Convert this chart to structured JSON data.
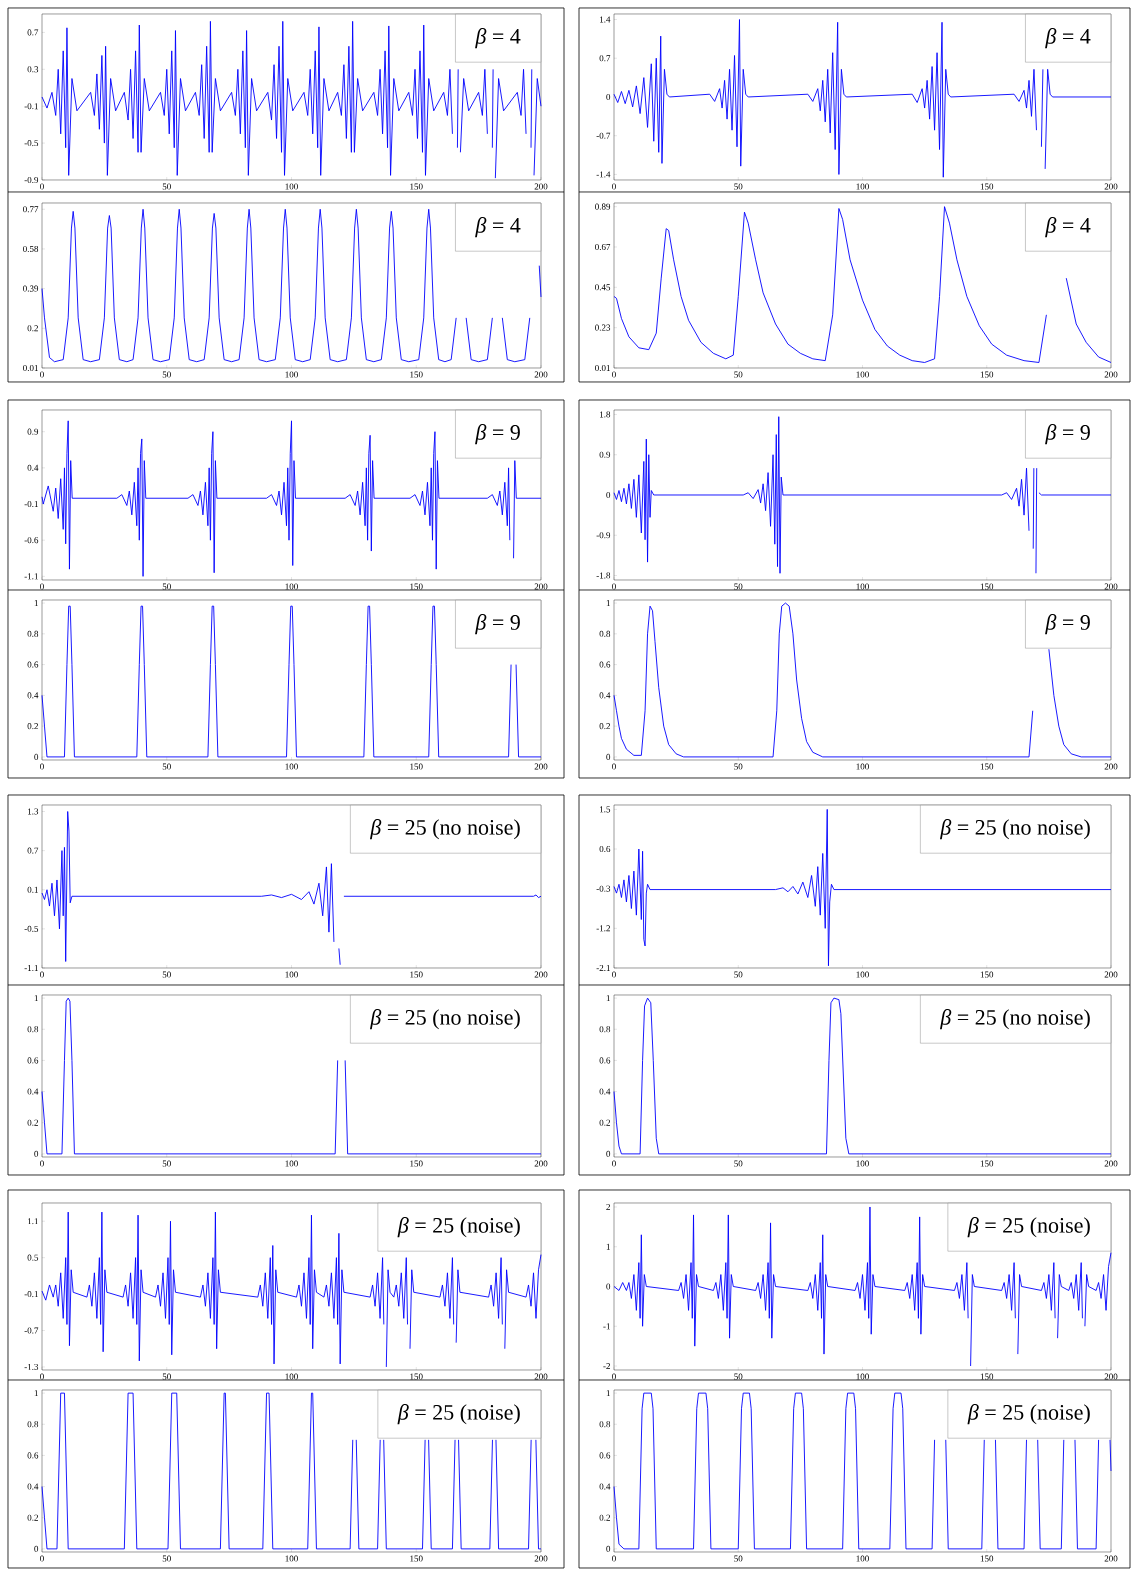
{
  "chart_data": [
    {
      "type": "line",
      "title": "*β* = 4",
      "color": "#0000ff",
      "xlim": [
        0,
        200
      ],
      "xticks": [
        0,
        50,
        100,
        150,
        200
      ],
      "ylim": [
        -0.9,
        0.9
      ],
      "yticks": [
        -0.9,
        -0.5,
        -0.1,
        0.3,
        0.7
      ],
      "x": [
        0,
        2,
        4,
        5.5,
        6.5,
        7.5,
        8.5,
        9.5,
        10,
        10.7,
        12,
        14,
        19.5,
        21,
        22,
        23,
        24,
        25,
        25.5,
        26.2,
        27.5,
        29.5,
        33,
        34.5,
        35.5,
        36.5,
        37.5,
        38.5,
        39,
        39.7,
        41,
        43,
        47.5,
        49,
        50,
        51,
        52,
        53,
        53.5,
        54.2,
        55.5,
        57.5,
        61.5,
        63,
        64,
        65,
        66,
        67,
        67.5,
        68.2,
        69.5,
        71.5,
        76,
        77.5,
        78.5,
        79.5,
        80.5,
        81.5,
        82,
        82.7,
        84,
        86,
        90.5,
        92,
        93,
        94,
        95,
        96,
        96.5,
        97.2,
        98.5,
        100.5,
        105,
        106.5,
        107.5,
        108.5,
        109.5,
        110.5,
        111,
        111.7,
        113,
        115,
        118.5,
        120,
        121,
        122,
        123,
        124,
        124.5,
        125.2,
        126.5,
        128.5,
        133,
        134.5,
        135.5,
        136.5,
        137.5,
        138.5,
        139,
        139.7,
        141,
        143,
        147,
        148.5,
        149.5,
        150.5,
        151.5,
        152.5,
        153,
        153.7,
        155,
        157,
        161,
        162.5,
        163.5,
        164.5,
        165.5,
        166.5,
        166.8,
        167,
        167.7,
        169,
        171,
        175,
        176.5,
        177.5,
        178.5,
        179.5,
        180.5,
        180.8,
        181,
        181.7,
        183,
        185,
        190.5,
        192,
        193,
        194,
        195,
        196,
        196.3,
        196.5,
        197.2,
        198.5,
        200
      ],
      "values": [
        0,
        -0.12,
        0.05,
        -0.2,
        0.3,
        -0.4,
        0.5,
        -0.55,
        0.75,
        -0.85,
        0.2,
        -0.15,
        0.05,
        -0.2,
        0.25,
        -0.35,
        0.45,
        -0.5,
        0.55,
        -0.85,
        0.2,
        -0.15,
        0.05,
        -0.25,
        0.3,
        -0.45,
        0.5,
        -0.6,
        0.78,
        -0.6,
        0.2,
        -0.15,
        0.05,
        -0.2,
        0.3,
        -0.4,
        0.5,
        -0.55,
        0.72,
        -0.85,
        0.2,
        -0.15,
        0.05,
        -0.2,
        0.35,
        -0.45,
        0.55,
        -0.6,
        0.82,
        -0.6,
        0.2,
        -0.15,
        0.05,
        -0.2,
        0.3,
        -0.4,
        0.5,
        -0.55,
        0.72,
        -0.85,
        0.2,
        -0.15,
        0.05,
        -0.25,
        0.35,
        -0.45,
        0.55,
        -0.6,
        0.82,
        -0.85,
        0.2,
        -0.15,
        0.05,
        -0.2,
        0.3,
        -0.4,
        0.5,
        -0.55,
        0.76,
        -0.85,
        0.2,
        -0.15,
        0.05,
        -0.2,
        0.35,
        -0.45,
        0.55,
        -0.6,
        0.82,
        -0.6,
        0.2,
        -0.15,
        0.05,
        -0.2,
        0.3,
        -0.4,
        0.5,
        -0.55,
        0.77,
        -0.85,
        0.2,
        -0.15,
        0.05,
        -0.2,
        0.3,
        -0.45,
        0.5,
        -0.6,
        0.78,
        -0.85,
        0.2,
        -0.15,
        0.05,
        -0.2,
        0.3,
        -0.4,
        null,
        -0.55,
        0.3,
        null,
        -0.6,
        0.2,
        -0.15,
        0.05,
        -0.2,
        0.3,
        -0.4,
        null,
        -0.55,
        0.3,
        null,
        -0.88,
        0.2,
        -0.15,
        0.05,
        -0.2,
        0.3,
        -0.4,
        null,
        -0.55,
        0.3,
        null,
        -0.85,
        0.2,
        -0.1
      ]
    },
    {
      "type": "line",
      "title": "*β* = 4",
      "color": "#0000ff",
      "xlim": [
        0,
        200
      ],
      "xticks": [
        0,
        50,
        100,
        150,
        200
      ],
      "ylim": [
        -1.5,
        1.5
      ],
      "yticks": [
        -1.4,
        -0.7,
        0,
        0.7,
        1.4
      ],
      "x": [
        0,
        1.5,
        3,
        4.5,
        6,
        7.5,
        9,
        10.5,
        12,
        13.5,
        15,
        16,
        17,
        18,
        18.8,
        19.3,
        20.3,
        21.3,
        22.3,
        38.5,
        40.5,
        42.5,
        43.5,
        44.5,
        45.5,
        46.5,
        47.5,
        48.5,
        49.5,
        50.5,
        51,
        52,
        53,
        54,
        78,
        80,
        82,
        83,
        84,
        85,
        86,
        87,
        88,
        89,
        90,
        90.5,
        91.5,
        92.5,
        93.5,
        120,
        122,
        124,
        125,
        126,
        127,
        128,
        129,
        130,
        131,
        132,
        132.5,
        133.5,
        134.5,
        135.5,
        161,
        163,
        165,
        166,
        167,
        168,
        169,
        170,
        171,
        172,
        172.6,
        173,
        173.5,
        174.5,
        175.5,
        176.5,
        200
      ],
      "values": [
        0.05,
        -0.1,
        0.1,
        -0.12,
        0.12,
        -0.18,
        0.2,
        -0.3,
        0.35,
        -0.55,
        0.6,
        -0.8,
        0.7,
        -1.0,
        1.1,
        -1.2,
        0.5,
        0.05,
        0,
        0.05,
        -0.08,
        0.15,
        -0.2,
        0.3,
        -0.4,
        0.5,
        -0.6,
        0.75,
        -0.9,
        1.4,
        -1.25,
        0.5,
        0.05,
        0,
        0.05,
        -0.08,
        0.15,
        -0.25,
        0.3,
        -0.45,
        0.5,
        -0.65,
        0.8,
        -0.95,
        1.35,
        -1.4,
        0.5,
        0.05,
        0,
        0.05,
        -0.1,
        0.15,
        -0.2,
        0.3,
        -0.4,
        0.55,
        -0.6,
        0.8,
        -0.95,
        1.35,
        -1.45,
        0.5,
        0.05,
        0,
        0.05,
        -0.08,
        0.12,
        -0.2,
        0.3,
        -0.35,
        0.5,
        -0.6,
        null,
        -0.9,
        0.5,
        null,
        -1.3,
        0.5,
        0.05,
        0,
        0
      ]
    },
    {
      "type": "line",
      "title": "*β* = 4",
      "color": "#0000ff",
      "xlim": [
        0,
        200
      ],
      "xticks": [
        0,
        50,
        100,
        150,
        200
      ],
      "ylim": [
        0.01,
        0.8
      ],
      "yticks": [
        0.01,
        0.2,
        0.39,
        0.58,
        0.77
      ],
      "x": [
        0,
        1,
        3,
        5,
        8.5,
        10.5,
        11.8,
        12.5,
        13.2,
        14.5,
        16.5,
        19.5,
        23,
        25,
        26.3,
        27,
        27.7,
        29,
        31,
        34,
        36.5,
        38.5,
        39.8,
        40.5,
        41.2,
        42.5,
        44.5,
        47.5,
        51,
        53,
        54.3,
        55,
        55.7,
        57,
        59,
        62,
        65,
        67,
        68.3,
        69,
        69.7,
        71,
        73,
        76,
        79,
        81,
        82.3,
        83,
        83.7,
        85,
        87,
        90,
        93.5,
        95.5,
        96.8,
        97.5,
        98.2,
        99.5,
        101.5,
        104.5,
        107.5,
        109.5,
        110.8,
        111.5,
        112.2,
        113.5,
        115.5,
        118.5,
        122,
        124,
        125.3,
        126,
        126.7,
        128,
        130,
        133,
        136,
        138,
        139.3,
        140,
        140.7,
        142,
        144,
        147,
        151,
        153,
        154.3,
        155,
        155.7,
        157,
        159,
        161.5,
        164,
        166,
        167.3,
        168,
        168.7,
        170,
        172,
        175,
        178.5,
        180.5,
        181.8,
        182.5,
        183.2,
        184.5,
        186.5,
        189.5,
        193.5,
        195.5,
        196.8,
        197.5,
        198.2,
        199.3,
        200
      ],
      "values": [
        0.39,
        0.25,
        0.06,
        0.04,
        0.05,
        0.25,
        0.68,
        0.76,
        0.68,
        0.25,
        0.05,
        0.04,
        0.05,
        0.25,
        0.68,
        0.74,
        0.68,
        0.25,
        0.05,
        0.04,
        0.05,
        0.25,
        0.68,
        0.77,
        0.68,
        0.25,
        0.05,
        0.04,
        0.05,
        0.25,
        0.68,
        0.77,
        0.68,
        0.25,
        0.05,
        0.04,
        0.05,
        0.25,
        0.68,
        0.75,
        0.68,
        0.25,
        0.05,
        0.04,
        0.05,
        0.25,
        0.68,
        0.77,
        0.68,
        0.25,
        0.05,
        0.04,
        0.05,
        0.25,
        0.68,
        0.77,
        0.68,
        0.25,
        0.05,
        0.04,
        0.05,
        0.25,
        0.68,
        0.77,
        0.68,
        0.25,
        0.05,
        0.04,
        0.05,
        0.25,
        0.68,
        0.77,
        0.68,
        0.25,
        0.05,
        0.04,
        0.05,
        0.25,
        0.68,
        0.76,
        0.68,
        0.25,
        0.05,
        0.04,
        0.05,
        0.25,
        0.68,
        0.77,
        0.68,
        0.25,
        0.05,
        0.04,
        0.05,
        0.25,
        null,
        null,
        null,
        0.25,
        0.05,
        0.04,
        0.05,
        0.25,
        null,
        null,
        null,
        0.25,
        0.05,
        0.04,
        0.05,
        0.25,
        null,
        null,
        null,
        0.5,
        0.35
      ]
    },
    {
      "type": "line",
      "title": "*β* = 4",
      "color": "#0000ff",
      "xlim": [
        0,
        200
      ],
      "xticks": [
        0,
        50,
        100,
        150,
        200
      ],
      "ylim": [
        0.01,
        0.91
      ],
      "yticks": [
        0.01,
        0.23,
        0.45,
        0.67,
        0.89
      ],
      "x": [
        0,
        1,
        3,
        6,
        10,
        14,
        17,
        19,
        21,
        22,
        24,
        27,
        30,
        35,
        40,
        45,
        48,
        50,
        52.5,
        54,
        57,
        60,
        65,
        70,
        75,
        80,
        85,
        88,
        90.5,
        92,
        95,
        100,
        105,
        110,
        115,
        120,
        125,
        129,
        131,
        133,
        135,
        138,
        142,
        147,
        152,
        158,
        165,
        171,
        174,
        177,
        179,
        182,
        186,
        190,
        195,
        200
      ],
      "values": [
        0.4,
        0.39,
        0.28,
        0.18,
        0.12,
        0.11,
        0.2,
        0.5,
        0.77,
        0.76,
        0.6,
        0.4,
        0.27,
        0.15,
        0.09,
        0.06,
        0.08,
        0.4,
        0.86,
        0.8,
        0.6,
        0.42,
        0.25,
        0.14,
        0.09,
        0.06,
        0.05,
        0.3,
        0.88,
        0.82,
        0.6,
        0.38,
        0.22,
        0.13,
        0.08,
        0.05,
        0.04,
        0.06,
        0.4,
        0.89,
        0.8,
        0.6,
        0.4,
        0.24,
        0.14,
        0.08,
        0.05,
        0.04,
        0.3,
        null,
        null,
        0.5,
        0.25,
        0.15,
        0.07,
        0.04
      ]
    },
    {
      "type": "line",
      "title": "*β* = 9",
      "color": "#0000ff",
      "xlim": [
        0,
        200
      ],
      "xticks": [
        0,
        50,
        100,
        150,
        200
      ],
      "ylim": [
        -1.15,
        1.2
      ],
      "yticks": [
        -1.1,
        -0.6,
        -0.1,
        0.4,
        0.9
      ],
      "x": [
        0,
        0.5,
        2.5,
        4.5,
        5.5,
        6.5,
        7.5,
        8.5,
        9,
        9.5,
        10,
        10.5,
        11,
        11.5,
        12.1,
        30,
        32,
        34,
        35,
        36,
        37,
        38,
        38.5,
        39,
        39.5,
        40,
        40.5,
        41,
        41.6,
        58.5,
        60.5,
        62.5,
        63.5,
        64.5,
        65.5,
        66.5,
        67,
        67.5,
        68,
        68.5,
        69,
        69.5,
        70.1,
        90,
        92,
        94,
        95,
        96,
        97,
        98,
        98.5,
        99,
        99.5,
        100,
        100.5,
        101,
        101.6,
        121.5,
        123.5,
        125.5,
        126.5,
        127.5,
        128.5,
        129.5,
        130,
        130.5,
        131,
        131.5,
        132,
        132.5,
        133.1,
        147.5,
        149.5,
        151.5,
        152.5,
        153.5,
        154.5,
        155.5,
        156,
        156.5,
        157,
        157.5,
        158,
        158.5,
        159.1,
        178.5,
        180.5,
        182.5,
        183.5,
        184.5,
        185.5,
        186.5,
        187,
        187.5,
        188,
        188.5,
        189,
        189.5,
        190.1,
        200
      ],
      "values": [
        0,
        -0.1,
        0.15,
        -0.2,
        0.12,
        -0.3,
        0.25,
        -0.45,
        0.4,
        -0.65,
        0.6,
        1.05,
        -1.0,
        0.5,
        -0.02,
        -0.02,
        0.03,
        -0.12,
        0.08,
        -0.25,
        0.2,
        -0.4,
        0.4,
        -0.6,
        0.6,
        0.8,
        -1.1,
        0.5,
        -0.02,
        -0.02,
        0.03,
        -0.12,
        0.08,
        -0.25,
        0.2,
        -0.4,
        0.4,
        -0.6,
        0.6,
        0.9,
        -1.05,
        0.5,
        -0.02,
        -0.02,
        0.03,
        -0.12,
        0.08,
        -0.25,
        0.2,
        -0.4,
        0.4,
        -0.6,
        0.6,
        1.05,
        -0.95,
        0.5,
        -0.02,
        -0.02,
        0.03,
        -0.12,
        0.08,
        -0.25,
        0.2,
        -0.4,
        0.4,
        -0.6,
        0.6,
        0.85,
        -0.75,
        0.5,
        -0.02,
        -0.02,
        0.03,
        -0.12,
        0.08,
        -0.25,
        0.2,
        -0.4,
        0.4,
        -0.6,
        0.6,
        0.9,
        -1.0,
        0.5,
        -0.02,
        -0.02,
        0.03,
        -0.12,
        0.08,
        -0.25,
        0.2,
        -0.4,
        0.4,
        -0.6,
        null,
        null,
        -0.85,
        0.5,
        -0.02,
        -0.02
      ]
    },
    {
      "type": "line",
      "title": "*β* = 9",
      "color": "#0000ff",
      "xlim": [
        0,
        200
      ],
      "xticks": [
        0,
        50,
        100,
        150,
        200
      ],
      "ylim": [
        -1.9,
        1.9
      ],
      "yticks": [
        -1.8,
        -0.9,
        0,
        0.9,
        1.8
      ],
      "x": [
        0,
        1,
        2,
        3,
        4,
        5,
        6,
        7,
        8,
        9,
        10,
        11,
        12,
        12.5,
        13,
        13.5,
        14,
        14.5,
        15,
        16,
        52,
        54,
        56,
        58,
        59,
        60,
        61,
        62,
        63,
        64,
        64.7,
        65.3,
        65.8,
        66.3,
        66.8,
        67.3,
        68,
        156,
        158,
        160,
        162,
        163,
        164,
        165,
        166,
        167,
        168,
        168.7,
        168.95,
        169.3,
        169.8,
        170.1,
        170.3,
        171,
        172,
        200
      ],
      "values": [
        0.05,
        -0.1,
        0.1,
        -0.15,
        0.15,
        -0.2,
        0.25,
        -0.3,
        0.35,
        -0.5,
        0.45,
        -0.85,
        0.75,
        -1.0,
        1.25,
        -1.5,
        0.9,
        -0.5,
        0.1,
        0,
        0,
        0.05,
        -0.08,
        0.12,
        -0.18,
        0.25,
        -0.35,
        0.5,
        -0.7,
        0.9,
        -1.1,
        1.35,
        -1.6,
        1.75,
        -1.75,
        0.4,
        0,
        0,
        0.05,
        -0.1,
        0.15,
        -0.25,
        0.35,
        -0.45,
        0.6,
        -0.8,
        null,
        -1.2,
        0.6,
        null,
        -1.75,
        0.6,
        null,
        0.05,
        0,
        0
      ]
    },
    {
      "type": "line",
      "title": "*β* = 9",
      "color": "#0000ff",
      "xlim": [
        0,
        200
      ],
      "xticks": [
        0,
        50,
        100,
        150,
        200
      ],
      "ylim": [
        -0.02,
        1.02
      ],
      "yticks": [
        0,
        0.2,
        0.4,
        0.6,
        0.8,
        1
      ],
      "x": [
        0,
        1,
        2,
        9,
        10,
        10.7,
        11.3,
        12,
        13,
        38,
        39,
        39.7,
        40.3,
        41,
        42,
        66.5,
        67.5,
        68.2,
        68.8,
        69.5,
        70.5,
        98,
        99,
        99.7,
        100.3,
        101,
        102,
        129,
        130,
        130.7,
        131.3,
        132,
        133,
        155,
        156,
        156.7,
        157.3,
        158,
        159,
        187,
        188,
        188.7,
        189.3,
        190,
        191,
        200
      ],
      "values": [
        0.4,
        0.2,
        0,
        0,
        0.6,
        0.98,
        0.98,
        0.6,
        0,
        0,
        0.6,
        0.98,
        0.98,
        0.6,
        0,
        0,
        0.6,
        0.98,
        0.98,
        0.6,
        0,
        0,
        0.6,
        0.98,
        0.98,
        0.6,
        0,
        0,
        0.6,
        0.98,
        0.98,
        0.6,
        0,
        0,
        0.6,
        0.98,
        0.98,
        0.6,
        0,
        0,
        0.6,
        null,
        null,
        0.6,
        0,
        0
      ]
    },
    {
      "type": "line",
      "title": "*β* = 9",
      "color": "#0000ff",
      "xlim": [
        0,
        200
      ],
      "xticks": [
        0,
        50,
        100,
        150,
        200
      ],
      "ylim": [
        -0.02,
        1.02
      ],
      "yticks": [
        0,
        0.2,
        0.4,
        0.6,
        0.8,
        1
      ],
      "x": [
        0,
        1,
        2,
        3,
        5,
        8,
        11,
        12.5,
        13.5,
        14.5,
        15.5,
        16.5,
        18,
        20,
        22,
        25,
        28,
        64,
        65.5,
        66.5,
        67.5,
        69,
        70.5,
        72,
        73.5,
        75.5,
        77.5,
        80,
        84,
        167,
        168.5,
        169.5,
        170.5,
        172,
        173.5,
        175,
        177,
        179,
        181,
        184,
        188,
        200
      ],
      "values": [
        0.4,
        0.3,
        0.2,
        0.12,
        0.05,
        0.01,
        0.01,
        0.3,
        0.8,
        0.98,
        0.95,
        0.75,
        0.45,
        0.2,
        0.08,
        0.02,
        0,
        0,
        0.3,
        0.8,
        0.98,
        1.0,
        0.98,
        0.8,
        0.5,
        0.25,
        0.1,
        0.03,
        0,
        0,
        0.3,
        null,
        null,
        null,
        null,
        0.7,
        0.4,
        0.2,
        0.08,
        0.02,
        0,
        0
      ]
    },
    {
      "type": "line",
      "title": "*β* = 25 (no noise)",
      "color": "#0000ff",
      "xlim": [
        0,
        200
      ],
      "xticks": [
        0,
        50,
        100,
        150,
        200
      ],
      "ylim": [
        -1.1,
        1.4
      ],
      "yticks": [
        -1.1,
        -0.5,
        0.1,
        0.7,
        1.3
      ],
      "x": [
        0,
        1,
        2,
        3,
        4,
        5,
        6,
        7,
        8,
        8.5,
        9,
        9.5,
        10.3,
        10.8,
        11.3,
        12,
        88,
        92,
        96,
        100,
        104,
        107,
        109,
        111,
        112.5,
        114,
        115,
        116,
        117,
        118,
        119,
        119.5,
        120,
        120.5,
        121,
        197,
        198,
        199,
        200
      ],
      "values": [
        0.05,
        -0.05,
        0.1,
        -0.15,
        0.2,
        -0.3,
        0.25,
        -0.5,
        0.7,
        -0.3,
        0.75,
        -1.0,
        1.3,
        1.0,
        -0.1,
        0,
        0,
        0.02,
        -0.02,
        0.03,
        -0.05,
        0.07,
        -0.12,
        0.2,
        -0.3,
        0.45,
        -0.55,
        0.5,
        -0.7,
        null,
        -0.8,
        -1.05,
        null,
        null,
        0,
        0,
        0.02,
        -0.02,
        0
      ]
    },
    {
      "type": "line",
      "title": "*β* = 25 (no noise)",
      "color": "#0000ff",
      "xlim": [
        0,
        200
      ],
      "xticks": [
        0,
        50,
        100,
        150,
        200
      ],
      "ylim": [
        -2.1,
        1.6
      ],
      "yticks": [
        -2.1,
        -1.2,
        -0.3,
        0.6,
        1.5
      ],
      "x": [
        0,
        1,
        2,
        3,
        4,
        5,
        6,
        7,
        8,
        9,
        10,
        11,
        11.5,
        12,
        12.5,
        13,
        13.5,
        14.5,
        65,
        68,
        70,
        72,
        74,
        76,
        78,
        79.5,
        81,
        82,
        83,
        84,
        85,
        85.8,
        86.3,
        86.8,
        87.5,
        88.5,
        200
      ],
      "values": [
        -0.25,
        -0.4,
        -0.2,
        -0.5,
        -0.1,
        -0.6,
        0,
        -0.75,
        0.1,
        -0.9,
        0.6,
        -1.0,
        0.55,
        -1.45,
        -1.6,
        -0.4,
        -0.2,
        -0.32,
        -0.32,
        -0.28,
        -0.37,
        -0.25,
        -0.42,
        -0.15,
        -0.5,
        0,
        -0.7,
        0.2,
        -0.9,
        0.5,
        -1.2,
        1.5,
        -2.05,
        -0.6,
        -0.2,
        -0.32,
        -0.32
      ]
    },
    {
      "type": "line",
      "title": "*β* = 25 (no noise)",
      "color": "#0000ff",
      "xlim": [
        0,
        200
      ],
      "xticks": [
        0,
        50,
        100,
        150,
        200
      ],
      "ylim": [
        -0.02,
        1.02
      ],
      "yticks": [
        0,
        0.2,
        0.4,
        0.6,
        0.8,
        1
      ],
      "x": [
        0,
        1,
        2,
        8,
        9,
        9.7,
        10.5,
        11.2,
        12,
        13,
        117.5,
        118.5,
        119.3,
        120.3,
        121.5,
        122.5,
        200
      ],
      "values": [
        0.4,
        0.2,
        0,
        0,
        0.6,
        0.98,
        1.0,
        0.98,
        0.6,
        0,
        0,
        0.6,
        null,
        null,
        0.6,
        0,
        0
      ]
    },
    {
      "type": "line",
      "title": "*β* = 25 (no noise)",
      "color": "#0000ff",
      "xlim": [
        0,
        200
      ],
      "xticks": [
        0,
        50,
        100,
        150,
        200
      ],
      "ylim": [
        -0.02,
        1.02
      ],
      "yticks": [
        0,
        0.2,
        0.4,
        0.6,
        0.8,
        1
      ],
      "x": [
        0,
        1,
        2,
        3,
        10.5,
        11.5,
        12.3,
        13.5,
        14.8,
        15.8,
        17,
        18,
        85.5,
        86.5,
        87.3,
        88.5,
        90.5,
        91.3,
        92.3,
        93.3,
        94.5,
        200
      ],
      "values": [
        0.4,
        0.2,
        0.05,
        0,
        0,
        0.6,
        0.95,
        1.0,
        0.97,
        0.6,
        0.1,
        0,
        0,
        0.6,
        0.97,
        1.0,
        0.99,
        0.9,
        0.5,
        0.1,
        0,
        0
      ]
    },
    {
      "type": "line",
      "title": "*β* = 25 (noise)",
      "color": "#0000ff",
      "xlim": [
        0,
        200
      ],
      "xticks": [
        0,
        50,
        100,
        150,
        200
      ],
      "ylim": [
        -1.35,
        1.4
      ],
      "yticks": [
        -1.3,
        -0.7,
        -0.1,
        0.5,
        1.1
      ],
      "x": [
        0,
        1.5,
        3,
        4.5,
        5.5,
        6.5,
        7.5,
        8.5,
        9.5,
        10,
        10.5,
        11,
        11.7,
        12.5,
        18,
        19,
        20,
        21,
        22,
        23,
        23.5,
        24,
        24.5,
        25.2,
        26,
        32.5,
        33.5,
        34.5,
        35.5,
        36.5,
        37.5,
        38,
        38.5,
        39,
        39.7,
        40.5,
        45.5,
        46.5,
        47.5,
        48.5,
        49.5,
        50.5,
        51,
        51.5,
        52,
        52.7,
        53.5,
        63.5,
        64.5,
        65.5,
        66.5,
        67.5,
        68.5,
        69,
        69.5,
        70,
        70.7,
        71.5,
        86.5,
        87.5,
        88.5,
        89.5,
        90.5,
        91.5,
        92,
        92.5,
        93,
        93.7,
        94.5,
        102,
        103,
        104,
        105,
        106,
        107,
        107.5,
        108,
        108.5,
        109.2,
        110,
        113,
        114,
        115,
        116,
        117,
        118,
        118.5,
        119,
        119.5,
        120.2,
        121,
        131.5,
        132.5,
        133.5,
        134.5,
        135.5,
        136.5,
        137,
        137.5,
        138,
        138.7,
        139.5,
        141,
        142,
        143,
        144,
        145,
        146,
        146.5,
        147,
        147.5,
        148.2,
        149,
        159.5,
        160.5,
        161.5,
        162.5,
        163.5,
        164.5,
        165,
        165.5,
        166,
        166.7,
        167.5,
        179,
        180,
        181,
        182,
        183,
        184,
        184.5,
        185,
        185.5,
        186.2,
        187,
        194,
        195,
        196,
        197,
        198,
        199,
        200
      ],
      "values": [
        -0.05,
        -0.2,
        0.05,
        -0.15,
        0.05,
        -0.3,
        0.25,
        -0.5,
        0.5,
        -0.6,
        1.25,
        -0.95,
        0.3,
        -0.07,
        -0.15,
        0.05,
        -0.3,
        0.25,
        -0.5,
        0.5,
        -0.6,
        1.25,
        -1.05,
        0.3,
        -0.07,
        -0.15,
        0.05,
        -0.3,
        0.25,
        -0.5,
        0.5,
        -0.6,
        1.2,
        -1.2,
        0.3,
        -0.07,
        -0.15,
        0.05,
        -0.3,
        0.25,
        -0.5,
        0.5,
        -0.6,
        1.1,
        -1.1,
        0.3,
        -0.07,
        -0.15,
        0.05,
        -0.3,
        0.25,
        -0.5,
        0.5,
        -0.6,
        1.25,
        -1.0,
        0.3,
        -0.07,
        -0.15,
        0.05,
        -0.3,
        0.25,
        -0.5,
        0.5,
        -0.6,
        0.7,
        -1.25,
        0.3,
        -0.07,
        -0.15,
        0.05,
        -0.3,
        0.25,
        -0.5,
        0.5,
        -0.6,
        1.2,
        -1.0,
        0.3,
        -0.07,
        -0.15,
        0.05,
        -0.3,
        0.25,
        -0.5,
        0.5,
        -0.6,
        0.9,
        -1.25,
        0.3,
        -0.07,
        -0.15,
        0.05,
        -0.3,
        0.25,
        -0.5,
        0.5,
        -0.6,
        null,
        -1.3,
        0.3,
        -0.07,
        -0.15,
        0.05,
        -0.3,
        0.25,
        -0.5,
        0.5,
        -0.6,
        null,
        -1.0,
        0.3,
        -0.07,
        -0.15,
        0.05,
        -0.3,
        0.25,
        -0.5,
        0.5,
        -0.6,
        null,
        -0.9,
        0.3,
        -0.07,
        -0.15,
        0.05,
        -0.3,
        0.25,
        -0.5,
        0.5,
        -0.6,
        null,
        -1.0,
        0.3,
        -0.07,
        -0.15,
        0.05,
        -0.3,
        0.25,
        -0.5,
        0.3,
        0.55
      ]
    },
    {
      "type": "line",
      "title": "*β* = 25 (noise)",
      "color": "#0000ff",
      "xlim": [
        0,
        200
      ],
      "xticks": [
        0,
        50,
        100,
        150,
        200
      ],
      "ylim": [
        -2.1,
        2.1
      ],
      "yticks": [
        -2,
        -1,
        0,
        1,
        2
      ],
      "x": [
        0,
        2,
        3.5,
        5,
        6,
        7,
        8,
        9,
        10,
        10.5,
        11,
        11.5,
        12.2,
        13,
        26,
        27,
        28,
        29,
        30,
        31,
        31.5,
        32,
        32.5,
        33.2,
        34,
        40,
        41,
        42,
        43,
        44,
        45,
        45.5,
        46,
        46.5,
        47.2,
        48,
        57,
        58,
        59,
        60,
        61,
        62,
        62.5,
        63,
        63.5,
        64.2,
        65,
        78,
        79,
        80,
        81,
        82,
        83,
        83.5,
        84,
        84.5,
        85.2,
        86,
        97,
        98,
        99,
        100,
        101,
        102,
        102.5,
        103,
        103.5,
        104.2,
        105,
        117,
        118,
        119,
        120,
        121,
        122,
        122.5,
        123,
        123.5,
        124.2,
        125,
        137,
        138,
        139,
        140,
        141,
        142,
        142.5,
        143,
        143.5,
        144.2,
        145,
        156,
        157,
        158,
        159,
        160,
        161,
        161.5,
        162,
        162.5,
        163.2,
        164,
        172,
        173,
        174,
        175,
        176,
        177,
        177.5,
        178,
        178.5,
        179.2,
        180,
        183,
        184,
        185,
        186,
        187,
        188,
        188.5,
        189,
        189.5,
        190.2,
        191,
        194,
        195,
        196,
        197,
        198,
        199,
        200
      ],
      "values": [
        0,
        -0.1,
        0.1,
        -0.1,
        0.1,
        -0.3,
        0.3,
        -0.6,
        0.6,
        -0.8,
        1.3,
        -1.0,
        0.3,
        0,
        -0.1,
        0.1,
        -0.3,
        0.3,
        -0.6,
        0.6,
        -0.8,
        1.8,
        -1.5,
        0.3,
        0,
        -0.1,
        0.1,
        -0.3,
        0.3,
        -0.6,
        0.6,
        -0.8,
        1.8,
        -1.3,
        0.3,
        0,
        -0.1,
        0.1,
        -0.3,
        0.3,
        -0.6,
        0.6,
        -0.8,
        1.6,
        -1.3,
        0.3,
        0,
        -0.1,
        0.1,
        -0.3,
        0.3,
        -0.6,
        0.6,
        -0.8,
        1.3,
        -1.7,
        0.3,
        0,
        -0.1,
        0.1,
        -0.3,
        0.3,
        -0.6,
        0.6,
        -0.8,
        2.0,
        -1.2,
        0.3,
        0,
        -0.1,
        0.1,
        -0.3,
        0.3,
        -0.6,
        0.6,
        -0.8,
        1.75,
        -1.2,
        0.3,
        0,
        -0.1,
        0.1,
        -0.3,
        0.3,
        -0.6,
        0.6,
        -0.8,
        null,
        -2.0,
        0.3,
        0,
        -0.1,
        0.1,
        -0.3,
        0.3,
        -0.6,
        0.6,
        -0.8,
        null,
        -1.7,
        0.3,
        0,
        -0.1,
        0.1,
        -0.3,
        0.3,
        -0.6,
        0.6,
        -0.8,
        null,
        -1.3,
        0.3,
        0,
        -0.1,
        0.1,
        -0.3,
        0.3,
        -0.6,
        0.6,
        -0.8,
        null,
        -1.0,
        0.3,
        0,
        -0.1,
        0.1,
        -0.3,
        0.3,
        -0.6,
        0.5,
        0.85
      ]
    },
    {
      "type": "line",
      "title": "*β* = 25 (noise)",
      "color": "#0000ff",
      "xlim": [
        0,
        200
      ],
      "xticks": [
        0,
        50,
        100,
        150,
        200
      ],
      "ylim": [
        -0.02,
        1.02
      ],
      "yticks": [
        0,
        0.2,
        0.4,
        0.6,
        0.8,
        1
      ],
      "x": [
        0,
        1,
        2,
        6,
        7.5,
        9,
        10.5,
        33,
        34.5,
        36.5,
        38,
        50.5,
        52,
        54,
        55.5,
        71.5,
        73,
        73.5,
        75,
        88.5,
        90,
        91,
        92.5,
        106.5,
        108,
        108.5,
        110,
        123.5,
        124.55,
        125.2,
        125.95,
        127,
        134.5,
        135.55,
        136.2,
        136.95,
        138,
        152.5,
        153.55,
        154.2,
        154.95,
        156,
        164.5,
        165.55,
        166.2,
        166.95,
        168,
        179.5,
        180.55,
        181.2,
        181.95,
        183,
        195,
        196.05,
        197,
        197.95,
        199,
        200
      ],
      "values": [
        0.4,
        0.2,
        0,
        0,
        1,
        1,
        0,
        0,
        1,
        1,
        0,
        0,
        1,
        1,
        0,
        0,
        1,
        1,
        0,
        0,
        1,
        1,
        0,
        0,
        1,
        1,
        0,
        0,
        0.7,
        null,
        0.7,
        0,
        0,
        0.7,
        null,
        0.7,
        0,
        0,
        0.7,
        null,
        0.7,
        0,
        0,
        0.7,
        null,
        0.7,
        0,
        0,
        0.7,
        null,
        0.7,
        0,
        0,
        0.7,
        null,
        0.7,
        0,
        0
      ]
    },
    {
      "type": "line",
      "title": "*β* = 25 (noise)",
      "color": "#0000ff",
      "xlim": [
        0,
        200
      ],
      "xticks": [
        0,
        50,
        100,
        150,
        200
      ],
      "ylim": [
        -0.02,
        1.02
      ],
      "yticks": [
        0,
        0.2,
        0.4,
        0.6,
        0.8,
        1
      ],
      "x": [
        0,
        1,
        2,
        4,
        10,
        11.3,
        12,
        15,
        15.7,
        17,
        32,
        33.3,
        34,
        37,
        37.7,
        39,
        50,
        51.3,
        52,
        54.5,
        55.2,
        56.5,
        71,
        72.3,
        73,
        75.5,
        76.2,
        77.5,
        92,
        93.3,
        94,
        96.5,
        97.2,
        98.5,
        111,
        112.3,
        113,
        115.5,
        116.2,
        117.5,
        128,
        129,
        131,
        133.5,
        134.5,
        148,
        149,
        151,
        153.5,
        154.5,
        165,
        166,
        168,
        170.5,
        171.5,
        180,
        181,
        183,
        185.5,
        186.5,
        194,
        195,
        197,
        199.6,
        200
      ],
      "values": [
        0.4,
        0.2,
        0.03,
        0,
        0,
        0.9,
        1,
        1,
        0.9,
        0,
        0,
        0.9,
        1,
        1,
        0.9,
        0,
        0,
        0.9,
        1,
        1,
        0.9,
        0,
        0,
        0.9,
        1,
        1,
        0.9,
        0,
        0,
        0.9,
        1,
        1,
        0.9,
        0,
        0,
        0.9,
        1,
        1,
        0.9,
        0,
        0,
        0.7,
        null,
        0.7,
        0,
        0,
        0.7,
        null,
        0.7,
        0,
        0,
        0.7,
        null,
        0.7,
        0,
        0,
        0.7,
        null,
        0.7,
        0,
        0,
        0.7,
        null,
        0.7,
        0.5
      ]
    }
  ]
}
